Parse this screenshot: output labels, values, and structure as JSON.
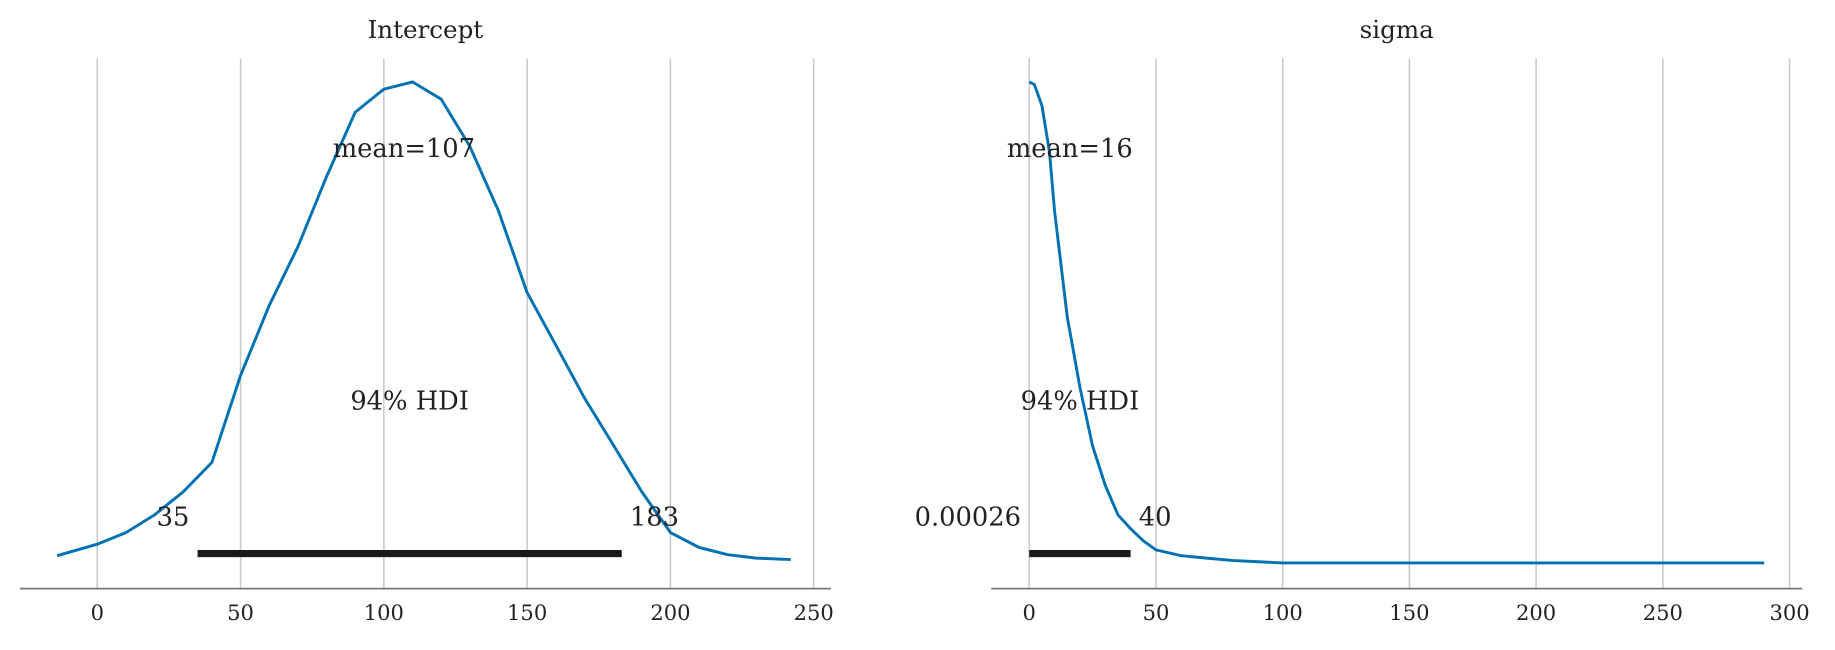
{
  "chart_data": [
    {
      "type": "density",
      "title": "Intercept",
      "point_estimate": "mean=107",
      "mean": 107,
      "hdi_label": "94% HDI",
      "hdi": [
        35,
        183
      ],
      "color": "#0072b2",
      "x": [
        -14,
        0,
        10,
        20,
        30,
        40,
        50,
        60,
        70,
        80,
        90,
        100,
        110,
        120,
        130,
        140,
        150,
        160,
        170,
        180,
        190,
        200,
        210,
        220,
        230,
        242
      ],
      "values": [
        0.015,
        0.039,
        0.063,
        0.1,
        0.148,
        0.209,
        0.39,
        0.535,
        0.657,
        0.803,
        0.937,
        0.985,
        1.0,
        0.964,
        0.866,
        0.732,
        0.562,
        0.453,
        0.343,
        0.246,
        0.148,
        0.063,
        0.032,
        0.017,
        0.01,
        0.007
      ],
      "xlim": [
        -27,
        256
      ],
      "ylim": [
        0,
        1
      ],
      "xticks": [
        0,
        50,
        100,
        150,
        200,
        250
      ],
      "grid": true
    },
    {
      "type": "density",
      "title": "sigma",
      "point_estimate": "mean=16",
      "mean": 16,
      "hdi_label": "94% HDI",
      "hdi": [
        0.00026,
        40
      ],
      "color": "#0072b2",
      "x": [
        0,
        2,
        5,
        8,
        10,
        15,
        20,
        25,
        30,
        35,
        40,
        45,
        50,
        60,
        70,
        80,
        100,
        150,
        200,
        250,
        290
      ],
      "values": [
        1.0,
        0.995,
        0.951,
        0.854,
        0.732,
        0.511,
        0.365,
        0.243,
        0.161,
        0.1,
        0.071,
        0.046,
        0.027,
        0.015,
        0.01,
        0.005,
        0,
        0,
        0,
        0,
        0
      ],
      "xlim": [
        -15,
        305
      ],
      "ylim": [
        0,
        1
      ],
      "xticks": [
        0,
        50,
        100,
        150,
        200,
        250,
        300
      ],
      "grid": true
    }
  ]
}
